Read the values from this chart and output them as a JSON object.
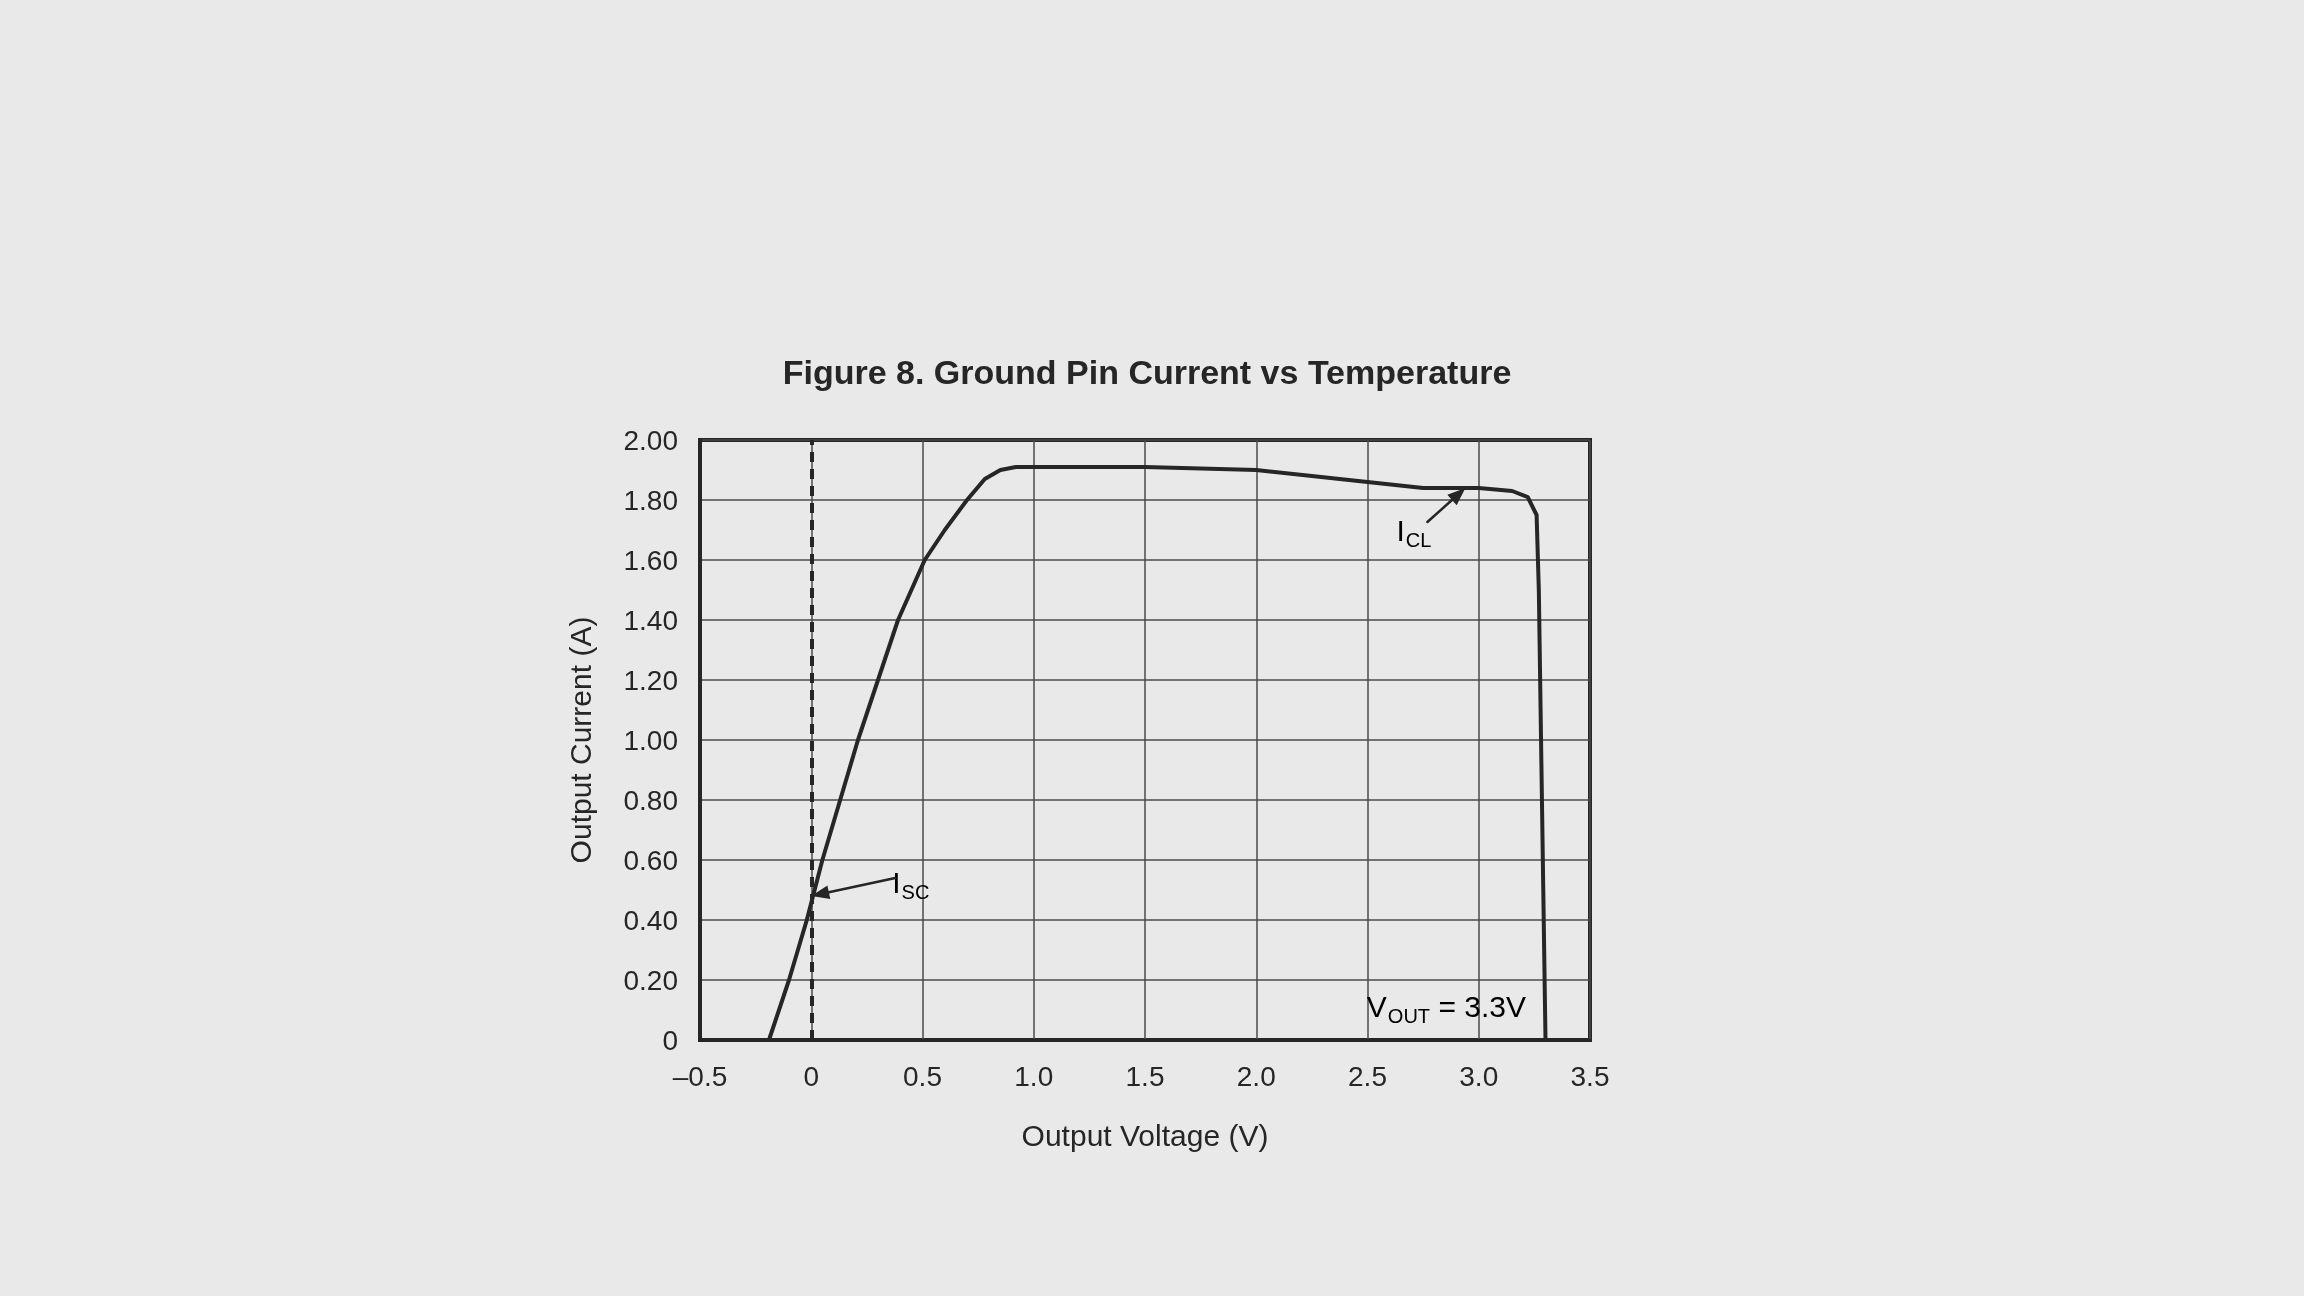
{
  "chart_data": {
    "type": "line",
    "title": "Figure 8. Ground Pin Current vs Temperature",
    "xlabel": "Output Voltage (V)",
    "ylabel": "Output Current (A)",
    "x": [
      -0.19,
      -0.1,
      -0.02,
      0.05,
      0.13,
      0.21,
      0.3,
      0.39,
      0.51,
      0.6,
      0.7,
      0.78,
      0.85,
      0.92,
      1.0,
      1.5,
      2.0,
      2.25,
      2.5,
      2.75,
      3.0,
      3.15,
      3.22,
      3.26,
      3.27,
      3.28,
      3.29,
      3.3
    ],
    "values": [
      0,
      0.2,
      0.4,
      0.6,
      0.8,
      1.0,
      1.2,
      1.4,
      1.6,
      1.7,
      1.8,
      1.87,
      1.9,
      1.91,
      1.91,
      1.91,
      1.9,
      1.88,
      1.86,
      1.84,
      1.84,
      1.83,
      1.81,
      1.75,
      1.5,
      1.0,
      0.5,
      0
    ],
    "color": "#262626",
    "marker": "none",
    "xlim": [
      -0.5,
      3.5
    ],
    "xticks": [
      {
        "value": -0.5,
        "label": "–0.5"
      },
      0,
      0.5,
      {
        "value": 1,
        "label": "1.0"
      },
      1.5,
      {
        "value": 2,
        "label": "2.0"
      },
      2.5,
      {
        "value": 3,
        "label": "3.0"
      },
      3.5
    ],
    "ylim": [
      0,
      2
    ],
    "yticks": [
      0,
      {
        "value": 0.2,
        "label": "0.20"
      },
      {
        "value": 0.4,
        "label": "0.40"
      },
      {
        "value": 0.6,
        "label": "0.60"
      },
      {
        "value": 0.8,
        "label": "0.80"
      },
      {
        "value": 1,
        "label": "1.00"
      },
      {
        "value": 1.2,
        "label": "1.20"
      },
      {
        "value": 1.4,
        "label": "1.40"
      },
      {
        "value": 1.6,
        "label": "1.60"
      },
      {
        "value": 1.8,
        "label": "1.80"
      },
      {
        "value": 2,
        "label": "2.00"
      }
    ],
    "grid": true,
    "ref_lines": [
      {
        "axis": "x",
        "value": 0,
        "line_style": "dashed",
        "color": "#262626"
      }
    ],
    "annotations": [
      {
        "text": "I$_{SC}$",
        "x": 0,
        "y": 0.48
      },
      {
        "text": "I$_{CL}$",
        "x": 2.94,
        "y": 1.84
      },
      "V$_{OUT}$ = 3.3V"
    ]
  }
}
